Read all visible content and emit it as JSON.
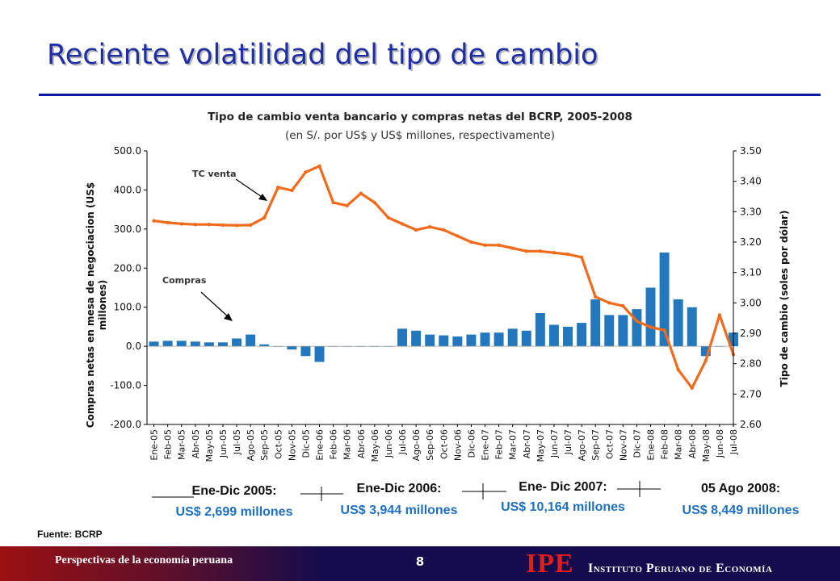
{
  "slide": {
    "title": "Reciente volatilidad del tipo de cambio",
    "source": "Fuente: BCRP",
    "page_number": "8",
    "footer_text": "Perspectivas de la economía peruana",
    "logo_text": "IPE",
    "logo_name": "Instituto Peruano de Economía"
  },
  "chart_data": {
    "type": "combo-bar-line",
    "title": "Tipo de cambio venta bancario y compras netas del BCRP, 2005-2008",
    "subtitle": "(en S/. por US$ y US$ millones, respectivamente)",
    "ylabel_left": "Compras netas en mesa de negociacion (US$ millones)",
    "ylabel_right": "Tipo de cambio (soles por dólar)",
    "ylim_left": [
      -200,
      500
    ],
    "yticks_left": [
      "500.0",
      "400.0",
      "300.0",
      "200.0",
      "100.0",
      "0.0",
      "-100.0",
      "-200.0"
    ],
    "ylim_right": [
      2.6,
      3.5
    ],
    "yticks_right": [
      "3.50",
      "3.40",
      "3.30",
      "3.20",
      "3.10",
      "3.00",
      "2.90",
      "2.80",
      "2.70",
      "2.60"
    ],
    "categories": [
      "Ene-05",
      "Feb-05",
      "Mar-05",
      "Abr-05",
      "May-05",
      "Jun-05",
      "Jul-05",
      "Ago-05",
      "Sep-05",
      "Oct-05",
      "Nov-05",
      "Dic-05",
      "Ene-06",
      "Feb-06",
      "Mar-06",
      "Abr-06",
      "May-06",
      "Jun-06",
      "Jul-06",
      "Ago-06",
      "Sep-06",
      "Oct-06",
      "Nov-06",
      "Dic-06",
      "Ene-07",
      "Feb-07",
      "Mar-07",
      "Abr-07",
      "May-07",
      "Jun-07",
      "Jul-07",
      "Ago-07",
      "Sep-07",
      "Oct-07",
      "Nov-07",
      "Dic-07",
      "Ene-08",
      "Feb-08",
      "Mar-08",
      "Abr-08",
      "May-08",
      "Jun-08",
      "Jul-08"
    ],
    "series": [
      {
        "name": "TC venta",
        "kind": "line",
        "axis": "right",
        "color": "#f26b1d",
        "values": [
          3.27,
          3.264,
          3.26,
          3.258,
          3.258,
          3.256,
          3.255,
          3.256,
          3.28,
          3.38,
          3.37,
          3.43,
          3.45,
          3.33,
          3.32,
          3.36,
          3.33,
          3.28,
          3.26,
          3.24,
          3.25,
          3.24,
          3.22,
          3.2,
          3.19,
          3.19,
          3.18,
          3.17,
          3.17,
          3.165,
          3.16,
          3.15,
          3.02,
          3.0,
          2.99,
          2.94,
          2.92,
          2.91,
          2.78,
          2.72,
          2.81,
          2.96,
          2.83
        ]
      },
      {
        "name": "Compras",
        "kind": "bar",
        "axis": "left",
        "color": "#2377bd",
        "values": [
          12,
          14,
          14,
          12,
          10,
          10,
          20,
          30,
          5,
          0,
          -8,
          -25,
          -40,
          0,
          0,
          0,
          0,
          0,
          45,
          40,
          30,
          28,
          25,
          30,
          35,
          35,
          45,
          40,
          85,
          55,
          50,
          60,
          120,
          80,
          80,
          95,
          150,
          240,
          120,
          100,
          -25,
          0,
          35
        ]
      }
    ],
    "annotations": [
      "TC venta",
      "Compras"
    ],
    "periods": [
      {
        "label": "Ene-Dic 2005:",
        "value": "US$ 2,699 millones"
      },
      {
        "label": "Ene-Dic 2006:",
        "value": "US$ 3,944 millones"
      },
      {
        "label": "Ene- Dic 2007:",
        "value": "US$ 10,164 millones"
      },
      {
        "label": "05 Ago 2008:",
        "value": "US$ 8,449 millones"
      }
    ],
    "colors": {
      "line": "#f26b1d",
      "bars": "#2377bd",
      "title": "#1f2fa3",
      "period_value": "#1f6fbf"
    }
  }
}
